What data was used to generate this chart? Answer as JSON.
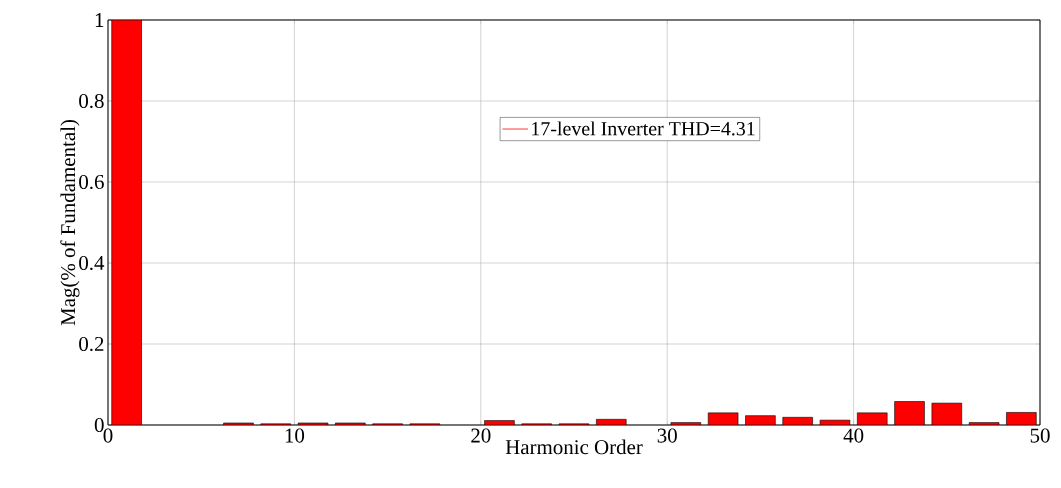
{
  "chart_data": {
    "type": "bar",
    "xlabel": "Harmonic Order",
    "ylabel": "Mag(% of Fundamental)",
    "x": [
      1,
      3,
      5,
      7,
      9,
      11,
      13,
      15,
      17,
      19,
      21,
      23,
      25,
      27,
      29,
      31,
      33,
      35,
      37,
      39,
      41,
      43,
      45,
      47,
      49
    ],
    "series": [
      {
        "name": "17-level Inverter THD=4.31",
        "color": "#ff0000",
        "values": [
          1,
          null,
          null,
          0.005,
          0.003,
          0.005,
          0.005,
          0.003,
          0.003,
          null,
          0.011,
          0.003,
          0.003,
          0.014,
          null,
          0.006,
          0.03,
          0.023,
          0.019,
          0.012,
          0.03,
          0.058,
          0.054,
          0.006,
          0.031
        ]
      }
    ],
    "xlim": [
      0,
      50
    ],
    "xticks": [
      0,
      10,
      20,
      30,
      40,
      50
    ],
    "ylim": [
      0,
      1
    ],
    "yticks": [
      0,
      0.2,
      0.4,
      0.6,
      0.8,
      1
    ],
    "grid": true,
    "legend": "top"
  }
}
